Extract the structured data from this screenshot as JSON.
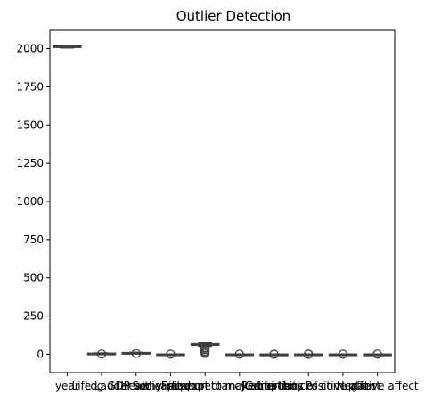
{
  "chart_data": {
    "type": "box",
    "title": "Outlier Detection",
    "xlabel": "",
    "ylabel": "",
    "ylim": [
      -120,
      2120
    ],
    "yticks": [
      0,
      250,
      500,
      750,
      1000,
      1250,
      1500,
      1750,
      2000
    ],
    "grid": false,
    "categories": [
      "year",
      "Life Ladder",
      "Log GDP per capita",
      "Social support",
      "Healthy life expectancy at birth",
      "Freedom to make life choices",
      "Generosity",
      "Perceptions of corruption",
      "Positive affect",
      "Negative affect"
    ],
    "boxes": [
      {
        "whisker_low": 2005,
        "q1": 2010,
        "median": 2013,
        "q3": 2017,
        "whisker_high": 2022,
        "outliers": []
      },
      {
        "whisker_low": 2.0,
        "q1": 4.6,
        "median": 5.4,
        "q3": 6.2,
        "whisker_high": 8.0,
        "outliers": [
          1.3
        ]
      },
      {
        "whisker_low": 5.5,
        "q1": 8.4,
        "median": 9.5,
        "q3": 10.4,
        "whisker_high": 11.7,
        "outliers": [
          5.5
        ]
      },
      {
        "whisker_low": 0.4,
        "q1": 0.74,
        "median": 0.83,
        "q3": 0.9,
        "whisker_high": 0.99,
        "outliers": [
          0.3
        ]
      },
      {
        "whisker_low": 52,
        "q1": 59,
        "median": 65,
        "q3": 69,
        "whisker_high": 74,
        "outliers": [
          45,
          38,
          30,
          20,
          12,
          5
        ]
      },
      {
        "whisker_low": 0.45,
        "q1": 0.66,
        "median": 0.77,
        "q3": 0.86,
        "whisker_high": 0.99,
        "outliers": [
          0.3
        ]
      },
      {
        "whisker_low": -0.3,
        "q1": -0.1,
        "median": -0.02,
        "q3": 0.09,
        "whisker_high": 0.4,
        "outliers": [
          0.6,
          -0.4
        ]
      },
      {
        "whisker_low": 0.4,
        "q1": 0.69,
        "median": 0.8,
        "q3": 0.87,
        "whisker_high": 0.98,
        "outliers": [
          0.05,
          0.2,
          0.3
        ]
      },
      {
        "whisker_low": 0.3,
        "q1": 0.57,
        "median": 0.66,
        "q3": 0.74,
        "whisker_high": 0.88,
        "outliers": [
          0.2
        ]
      },
      {
        "whisker_low": 0.08,
        "q1": 0.2,
        "median": 0.26,
        "q3": 0.32,
        "whisker_high": 0.5,
        "outliers": [
          0.6,
          0.7
        ]
      }
    ],
    "box_color": "#4c72b0",
    "line_color": "#3f3f3f"
  }
}
